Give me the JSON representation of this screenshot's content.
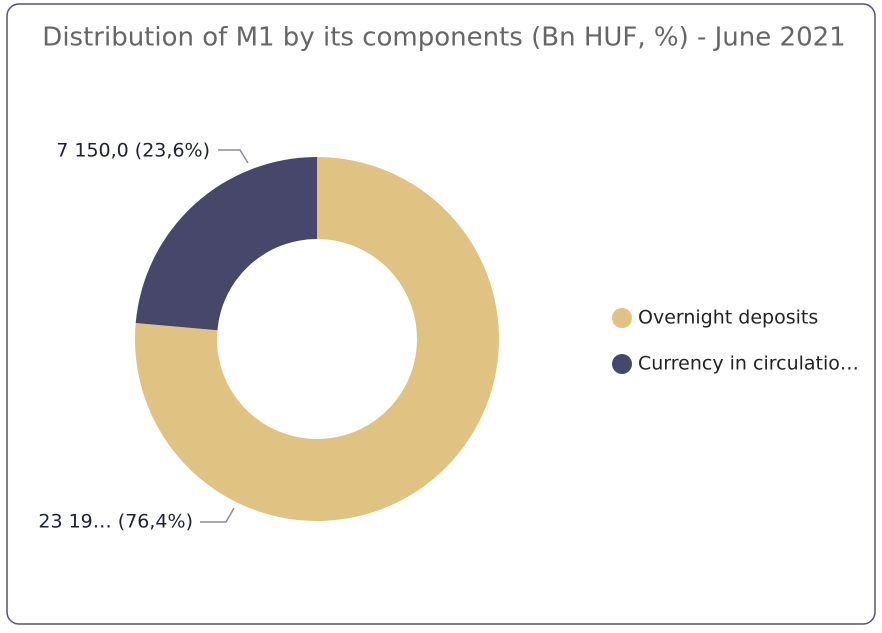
{
  "chart_data": {
    "type": "donut",
    "title": "Distribution of M1 by its components (Bn HUF, %) - June 2021",
    "categories": [
      "Overnight deposits",
      "Currency in circulatio…"
    ],
    "values": [
      76.4,
      23.6
    ],
    "value_labels": [
      "23 19… (76,4%)",
      "7 150,0 (23,6%)"
    ],
    "colors": [
      "#e0c283",
      "#47476b"
    ],
    "legend": "right"
  }
}
